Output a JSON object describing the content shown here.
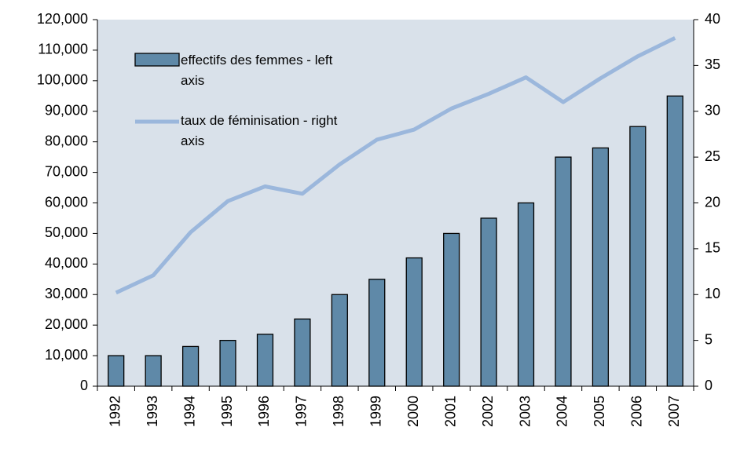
{
  "chart_data": {
    "type": "bar-line",
    "categories": [
      "1992",
      "1993",
      "1994",
      "1995",
      "1996",
      "1997",
      "1998",
      "1999",
      "2000",
      "2001",
      "2002",
      "2003",
      "2004",
      "2005",
      "2006",
      "2007"
    ],
    "series": [
      {
        "name": "effectifs des femmes - left axis",
        "type": "bar",
        "color": "#5f89a8",
        "values": [
          10000,
          10000,
          13000,
          15000,
          17000,
          22000,
          30000,
          35000,
          42000,
          50000,
          55000,
          60000,
          75000,
          78000,
          85000,
          95000
        ]
      },
      {
        "name": "taux de féminisation - right axis",
        "type": "line",
        "axis": "y2",
        "color": "#9bb7dc",
        "values": [
          10.2,
          12.1,
          16.8,
          20.2,
          21.8,
          21.0,
          24.2,
          26.9,
          28.0,
          30.3,
          31.9,
          33.7,
          31.0,
          33.6,
          36.0,
          38.0
        ]
      }
    ],
    "ylim": [
      0,
      120000
    ],
    "yticks": [
      0,
      {
        "value": 10000,
        "label": "10,000"
      },
      {
        "value": 20000,
        "label": "20,000"
      },
      {
        "value": 30000,
        "label": "30,000"
      },
      {
        "value": 40000,
        "label": "40,000"
      },
      {
        "value": 50000,
        "label": "50,000"
      },
      {
        "value": 60000,
        "label": "60,000"
      },
      {
        "value": 70000,
        "label": "70,000"
      },
      {
        "value": 80000,
        "label": "80,000"
      },
      {
        "value": 90000,
        "label": "90,000"
      },
      {
        "value": 100000,
        "label": "100,000"
      },
      {
        "value": 110000,
        "label": "110,000"
      },
      {
        "value": 120000,
        "label": "120,000"
      }
    ],
    "y2lim": [
      0,
      40
    ],
    "y2ticks": [
      0,
      5,
      10,
      15,
      20,
      25,
      30,
      35,
      40
    ],
    "plot_background": "#d9e1ea",
    "legend": "upper left",
    "grid": false
  }
}
